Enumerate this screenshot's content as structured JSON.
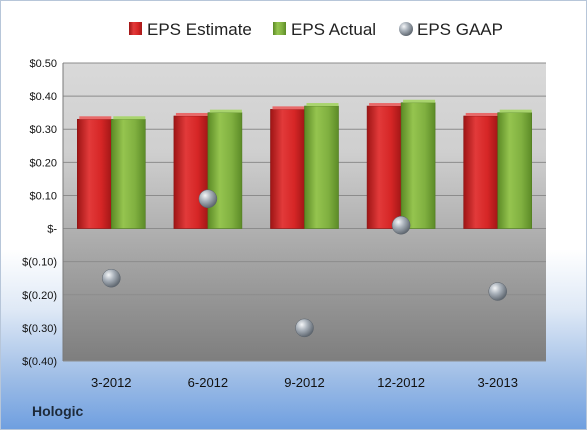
{
  "company": "Hologic",
  "chart_data": {
    "type": "bar",
    "categories": [
      "3-2012",
      "6-2012",
      "9-2012",
      "12-2012",
      "3-2013"
    ],
    "series": [
      {
        "name": "EPS Estimate",
        "kind": "bar",
        "color": "#d42a2a",
        "values": [
          0.33,
          0.34,
          0.36,
          0.37,
          0.34
        ]
      },
      {
        "name": "EPS Actual",
        "kind": "bar",
        "color": "#7fae3c",
        "values": [
          0.33,
          0.35,
          0.37,
          0.38,
          0.35
        ]
      },
      {
        "name": "EPS GAAP",
        "kind": "scatter",
        "color": "#9aa3ad",
        "values": [
          -0.15,
          0.09,
          -0.3,
          0.01,
          -0.19
        ]
      }
    ],
    "ylim": [
      -0.4,
      0.5
    ],
    "yticks": [
      0.5,
      0.4,
      0.3,
      0.2,
      0.1,
      0,
      -0.1,
      -0.2,
      -0.3,
      -0.4
    ],
    "ytick_labels": [
      "$0.50",
      "$0.40",
      "$0.30",
      "$0.20",
      "$0.10",
      "$-",
      "$(0.10)",
      "$(0.20)",
      "$(0.30)",
      "$(0.40)"
    ],
    "legend_position": "top",
    "grid": true
  }
}
